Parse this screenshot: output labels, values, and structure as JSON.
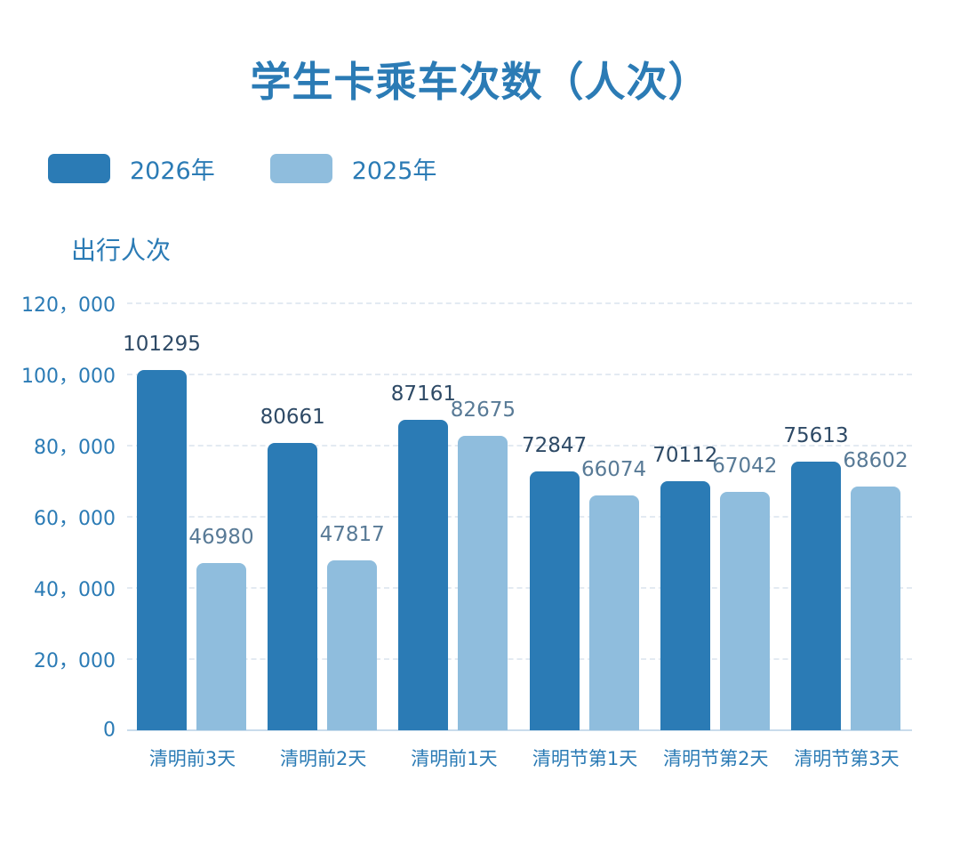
{
  "title": "学生卡乘车次数（人次）",
  "legend": [
    {
      "label": "2026年",
      "color": "#2b7bb5"
    },
    {
      "label": "2025年",
      "color": "#8fbddd"
    }
  ],
  "y_title": "出行人次",
  "y_ticks": [
    "0",
    "20，000",
    "40，000",
    "60，000",
    "80，000",
    "100，000",
    "120，000"
  ],
  "categories": [
    "清明前3天",
    "清明前2天",
    "清明前1天",
    "清明节第1天",
    "清明节第2天",
    "清明节第3天"
  ],
  "value_labels": {
    "s2026": [
      "101295",
      "80661",
      "87161",
      "72847",
      "70112",
      "75613"
    ],
    "s2025": [
      "46980",
      "47817",
      "82675",
      "66074",
      "67042",
      "68602"
    ]
  },
  "chart_data": {
    "type": "bar",
    "title": "学生卡乘车次数（人次）",
    "xlabel": "",
    "ylabel": "出行人次",
    "ylim": [
      0,
      120000
    ],
    "yticks": [
      0,
      20000,
      40000,
      60000,
      80000,
      100000,
      120000
    ],
    "grid": true,
    "legend_position": "top-left",
    "categories": [
      "清明前3天",
      "清明前2天",
      "清明前1天",
      "清明节第1天",
      "清明节第2天",
      "清明节第3天"
    ],
    "series": [
      {
        "name": "2026年",
        "color": "#2b7bb5",
        "values": [
          101295,
          80661,
          87161,
          72847,
          70112,
          75613
        ]
      },
      {
        "name": "2025年",
        "color": "#8fbddd",
        "values": [
          46980,
          47817,
          82675,
          66074,
          67042,
          68602
        ]
      }
    ]
  }
}
